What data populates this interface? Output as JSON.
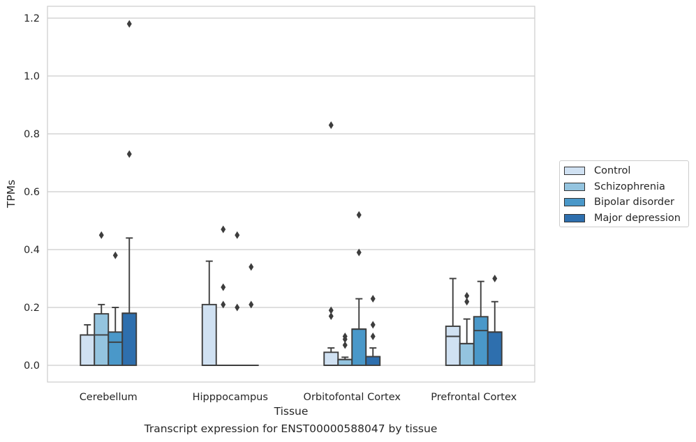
{
  "chart_data": {
    "type": "box",
    "xlabel": "Tissue",
    "ylabel": "TPMs",
    "caption": "Transcript expression for ENST00000588047 by tissue",
    "categories": [
      "Cerebellum",
      "Hipppocampus",
      "Orbitofontal Cortex",
      "Prefrontal Cortex"
    ],
    "ylim": [
      -0.058,
      1.24
    ],
    "yticks": [
      "0.0",
      "0.2",
      "0.4",
      "0.6",
      "0.8",
      "1.0",
      "1.2"
    ],
    "grid": true,
    "legend_position": "right",
    "series": [
      {
        "name": "Control",
        "color": "#d0e1f2",
        "boxes": [
          {
            "q1": 0,
            "median": 0.105,
            "q3": 0.105,
            "whisker_low": 0,
            "whisker_high": 0.14,
            "outliers": []
          },
          {
            "q1": 0,
            "median": 0,
            "q3": 0.21,
            "whisker_low": 0,
            "whisker_high": 0.36,
            "outliers": []
          },
          {
            "q1": 0,
            "median": 0,
            "q3": 0.045,
            "whisker_low": 0,
            "whisker_high": 0.06,
            "outliers": [
              0.17,
              0.19,
              0.83
            ]
          },
          {
            "q1": 0,
            "median": 0.1,
            "q3": 0.135,
            "whisker_low": 0,
            "whisker_high": 0.3,
            "outliers": []
          }
        ]
      },
      {
        "name": "Schizophrenia",
        "color": "#94c4df",
        "boxes": [
          {
            "q1": 0,
            "median": 0.105,
            "q3": 0.178,
            "whisker_low": 0,
            "whisker_high": 0.21,
            "outliers": [
              0.45
            ]
          },
          {
            "q1": 0,
            "median": 0,
            "q3": 0,
            "whisker_low": 0,
            "whisker_high": 0,
            "outliers": [
              0.21,
              0.27,
              0.47
            ]
          },
          {
            "q1": 0,
            "median": 0.02,
            "q3": 0.02,
            "whisker_low": 0,
            "whisker_high": 0.028,
            "outliers": [
              0.07,
              0.09,
              0.1
            ]
          },
          {
            "q1": 0,
            "median": 0.075,
            "q3": 0.075,
            "whisker_low": 0,
            "whisker_high": 0.16,
            "outliers": [
              0.22,
              0.24
            ]
          }
        ]
      },
      {
        "name": "Bipolar disorder",
        "color": "#4a98c9",
        "boxes": [
          {
            "q1": 0,
            "median": 0.08,
            "q3": 0.115,
            "whisker_low": 0,
            "whisker_high": 0.2,
            "outliers": [
              0.38
            ]
          },
          {
            "q1": 0,
            "median": 0,
            "q3": 0,
            "whisker_low": 0,
            "whisker_high": 0,
            "outliers": [
              0.2,
              0.45
            ]
          },
          {
            "q1": 0,
            "median": 0.125,
            "q3": 0.125,
            "whisker_low": 0,
            "whisker_high": 0.23,
            "outliers": [
              0.39,
              0.52
            ]
          },
          {
            "q1": 0,
            "median": 0.12,
            "q3": 0.168,
            "whisker_low": 0,
            "whisker_high": 0.29,
            "outliers": []
          }
        ]
      },
      {
        "name": "Major depression",
        "color": "#2e6fae",
        "boxes": [
          {
            "q1": 0,
            "median": 0.18,
            "q3": 0.18,
            "whisker_low": 0,
            "whisker_high": 0.44,
            "outliers": [
              0.73,
              1.18
            ]
          },
          {
            "q1": 0,
            "median": 0,
            "q3": 0,
            "whisker_low": 0,
            "whisker_high": 0,
            "outliers": [
              0.21,
              0.34
            ]
          },
          {
            "q1": 0,
            "median": 0.03,
            "q3": 0.03,
            "whisker_low": 0,
            "whisker_high": 0.06,
            "outliers": [
              0.1,
              0.14,
              0.23
            ]
          },
          {
            "q1": 0,
            "median": 0.115,
            "q3": 0.115,
            "whisker_low": 0,
            "whisker_high": 0.22,
            "outliers": [
              0.3
            ]
          }
        ]
      }
    ]
  }
}
